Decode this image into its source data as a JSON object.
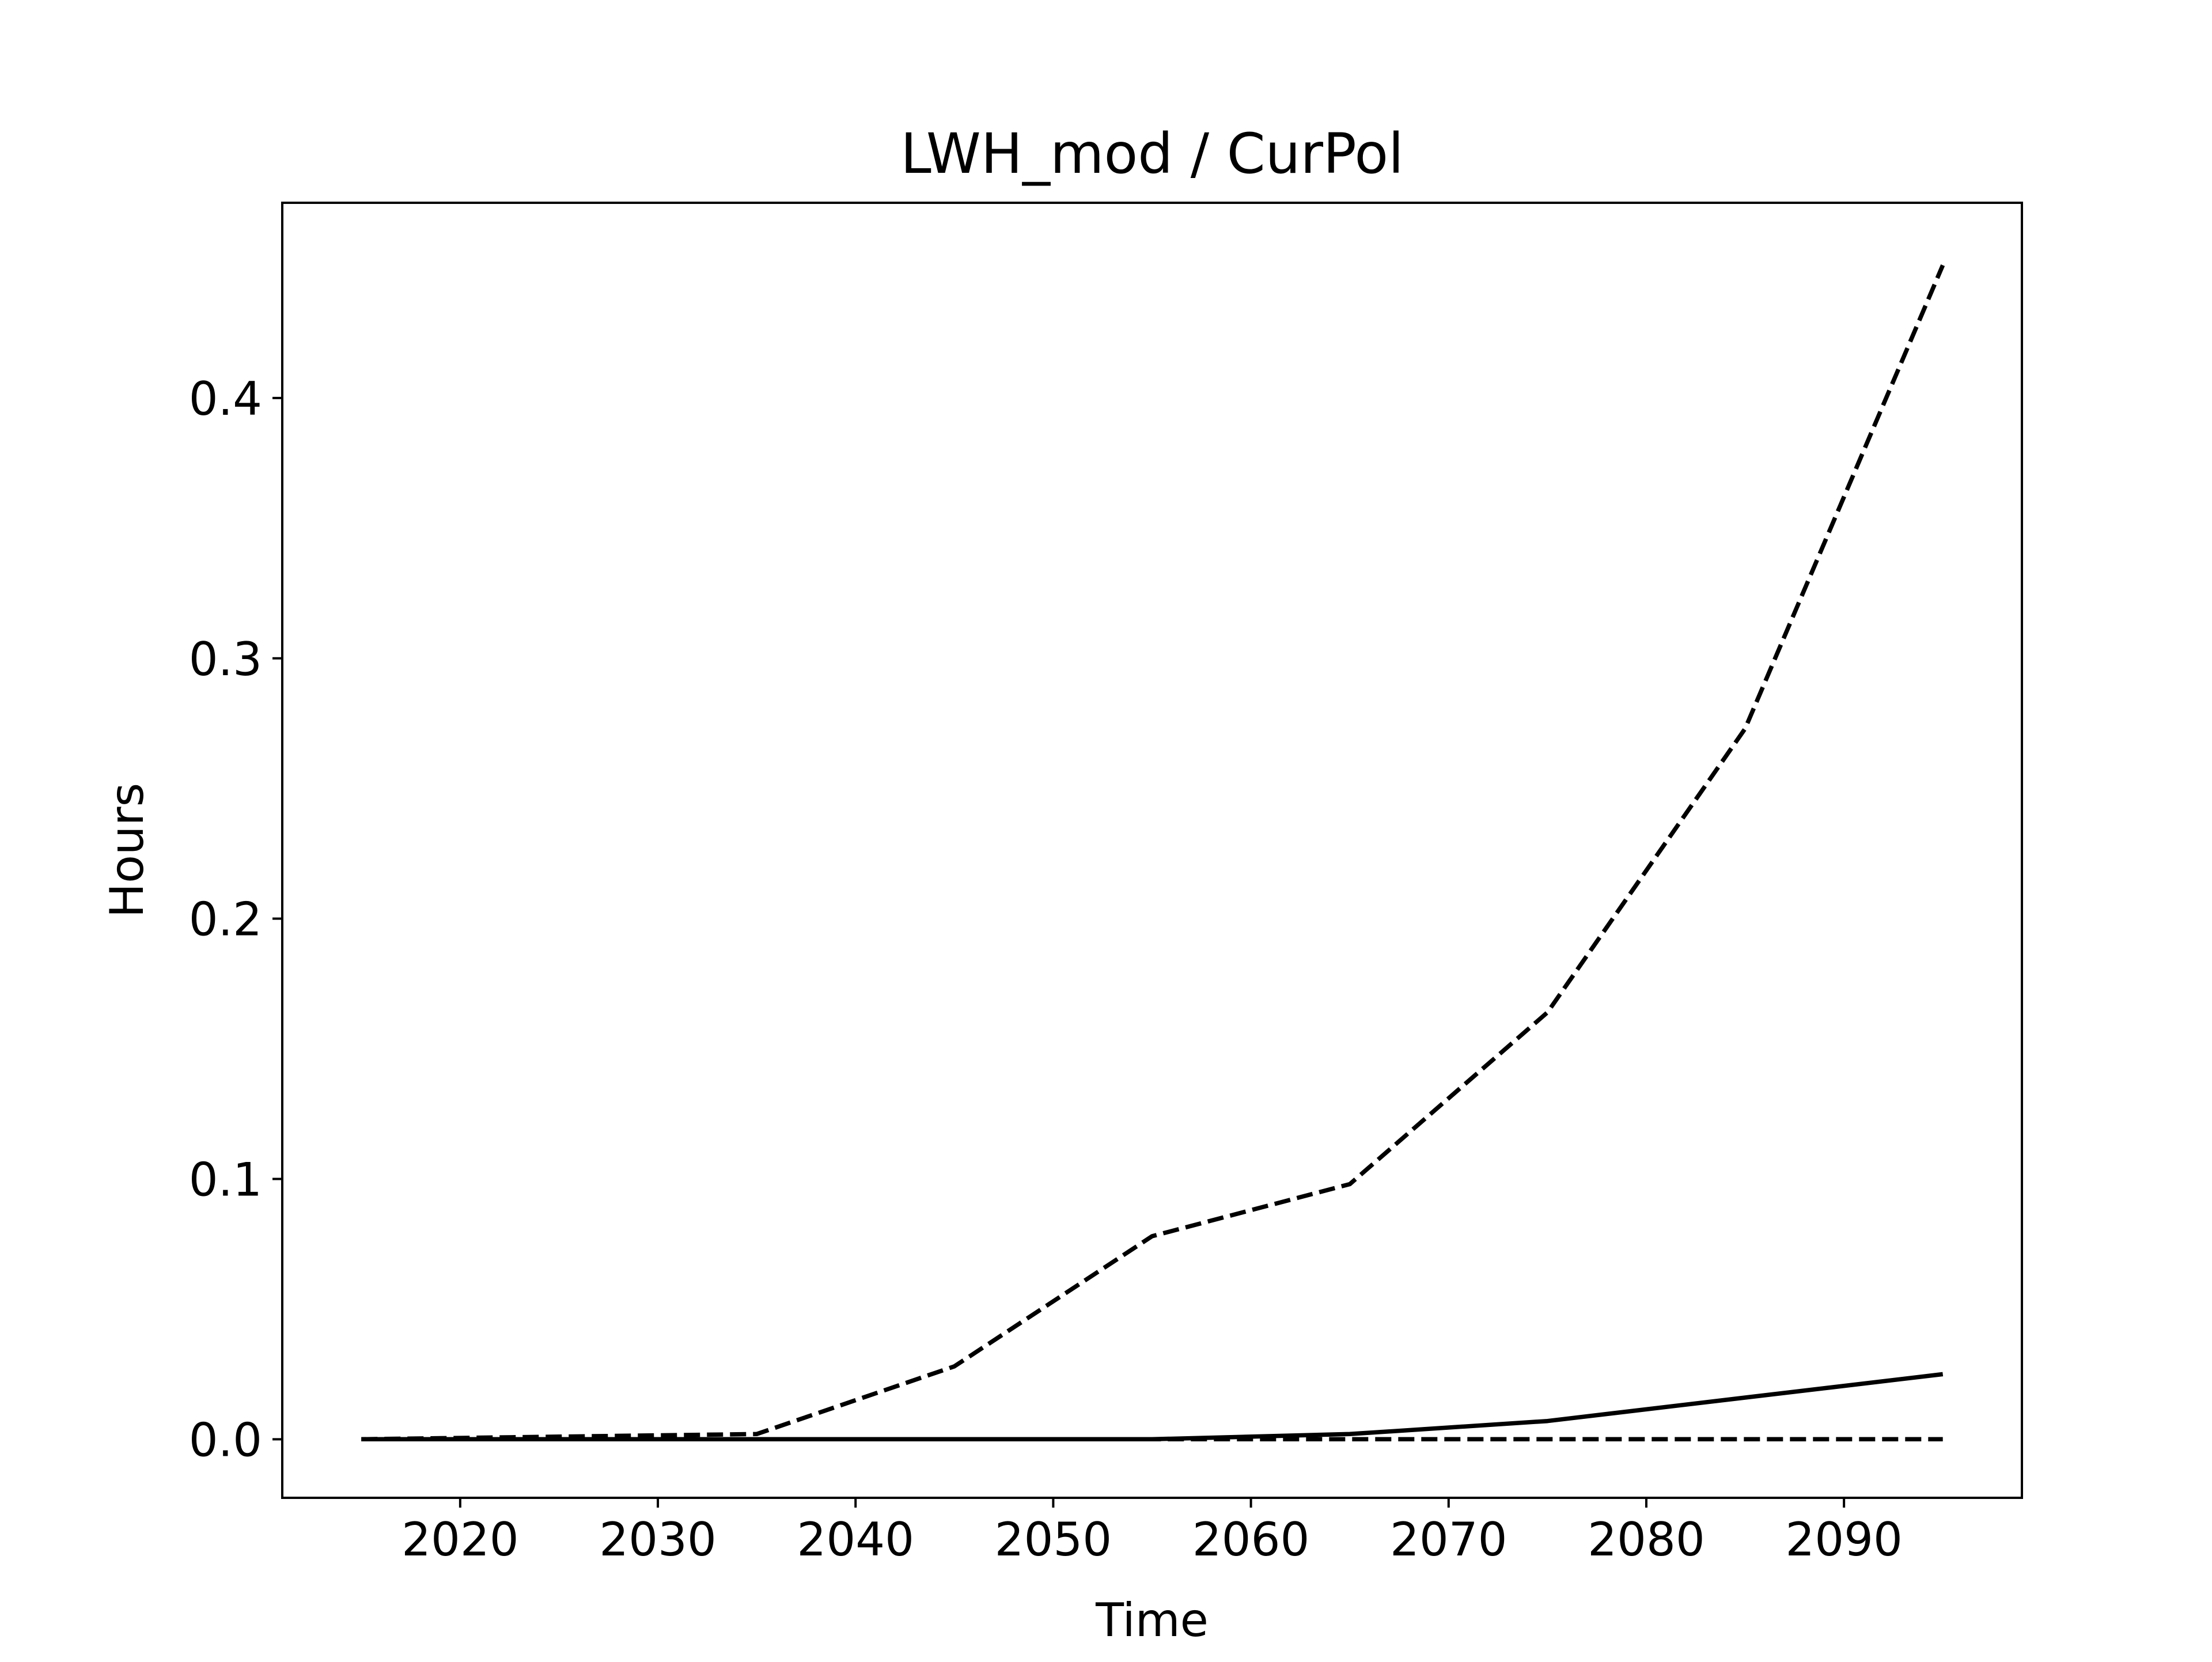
{
  "chart_data": {
    "type": "line",
    "title": "LWH_mod / CurPol",
    "xlabel": "Time",
    "ylabel": "Hours",
    "xlim": [
      2011,
      2099
    ],
    "ylim": [
      -0.0225,
      0.475
    ],
    "xticks": [
      2020,
      2030,
      2040,
      2050,
      2060,
      2070,
      2080,
      2090
    ],
    "xtick_labels": [
      "2020",
      "2030",
      "2040",
      "2050",
      "2060",
      "2070",
      "2080",
      "2090"
    ],
    "yticks": [
      0.0,
      0.1,
      0.2,
      0.3,
      0.4
    ],
    "ytick_labels": [
      "0.0",
      "0.1",
      "0.2",
      "0.3",
      "0.4"
    ],
    "grid": false,
    "legend": "none",
    "x": [
      2015,
      2025,
      2035,
      2045,
      2055,
      2065,
      2075,
      2085,
      2095
    ],
    "series": [
      {
        "style": "dashed",
        "color": "#000000",
        "values": [
          0.0,
          0.001,
          0.002,
          0.028,
          0.078,
          0.098,
          0.164,
          0.273,
          0.451
        ]
      },
      {
        "style": "solid",
        "color": "#000000",
        "values": [
          0.0,
          0.0,
          0.0,
          0.0,
          0.0,
          0.002,
          0.007,
          0.016,
          0.025
        ]
      },
      {
        "style": "dashed",
        "color": "#000000",
        "values": [
          0.0,
          0.0,
          0.0,
          0.0,
          0.0,
          0.0,
          0.0,
          0.0,
          0.0
        ]
      }
    ]
  }
}
